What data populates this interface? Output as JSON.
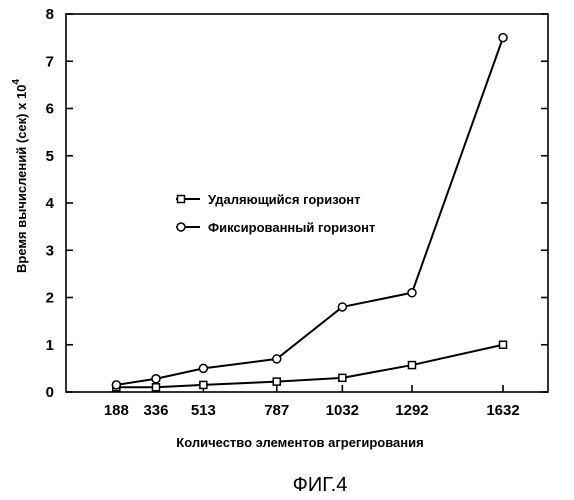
{
  "chart_data": {
    "type": "line",
    "x": [
      188,
      336,
      513,
      787,
      1032,
      1292,
      1632
    ],
    "x_tick_labels": [
      "188",
      "336",
      "513",
      "787",
      "1032",
      "1292",
      "1632"
    ],
    "xlim": [
      0,
      1800
    ],
    "ylim": [
      0,
      8
    ],
    "y_ticks": [
      0,
      1,
      2,
      3,
      4,
      5,
      6,
      7,
      8
    ],
    "y_tick_labels": [
      "0",
      "1",
      "2",
      "3",
      "4",
      "5",
      "6",
      "7",
      "8"
    ],
    "xlabel": "Количество элементов агрегирования",
    "ylabel_main": "Время вычислений (сек) x 10",
    "ylabel_exponent": "4",
    "legend_position": "center",
    "caption": "ФИГ.4",
    "grid": false,
    "series": [
      {
        "name": "Удаляющийся горизонт",
        "marker": "square",
        "values": [
          0.1,
          0.1,
          0.15,
          0.22,
          0.3,
          0.57,
          1.0
        ]
      },
      {
        "name": "Фиксированный горизонт",
        "marker": "circle",
        "values": [
          0.15,
          0.28,
          0.5,
          0.7,
          1.8,
          2.1,
          7.5
        ]
      }
    ]
  }
}
